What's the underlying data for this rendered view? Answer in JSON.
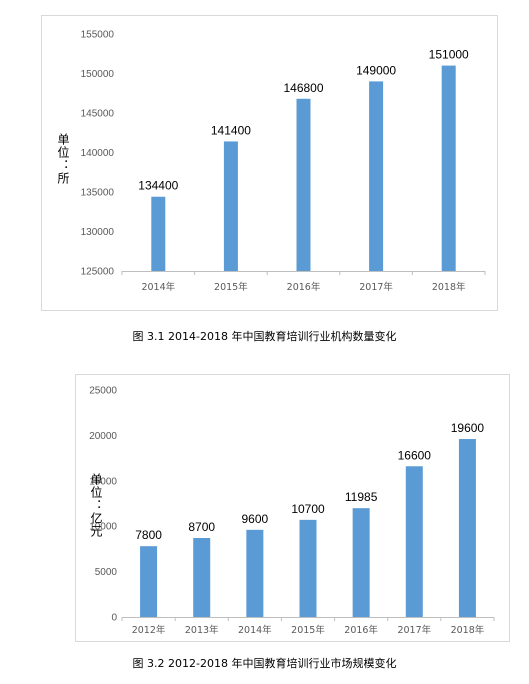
{
  "charts": [
    {
      "caption": "图 3.1 2014-2018 年中国教育培训行业机构数量变化",
      "unit": "单位：所",
      "chart_data": {
        "type": "bar",
        "categories": [
          "2014年",
          "2015年",
          "2016年",
          "2017年",
          "2018年"
        ],
        "values": [
          134400,
          141400,
          146800,
          149000,
          151000
        ],
        "yticks": [
          125000,
          130000,
          135000,
          140000,
          145000,
          150000,
          155000
        ],
        "ylim": [
          125000,
          155000
        ],
        "grid": false,
        "bar_color": "#5B9BD5"
      }
    },
    {
      "caption": "图 3.2 2012-2018 年中国教育培训行业市场规模变化",
      "unit": "单位：亿元",
      "chart_data": {
        "type": "bar",
        "categories": [
          "2012年",
          "2013年",
          "2014年",
          "2015年",
          "2016年",
          "2017年",
          "2018年"
        ],
        "values": [
          7800,
          8700,
          9600,
          10700,
          11985,
          16600,
          19600
        ],
        "yticks": [
          0,
          5000,
          10000,
          15000,
          20000,
          25000
        ],
        "ylim": [
          0,
          25000
        ],
        "grid": false,
        "bar_color": "#5B9BD5"
      }
    }
  ]
}
